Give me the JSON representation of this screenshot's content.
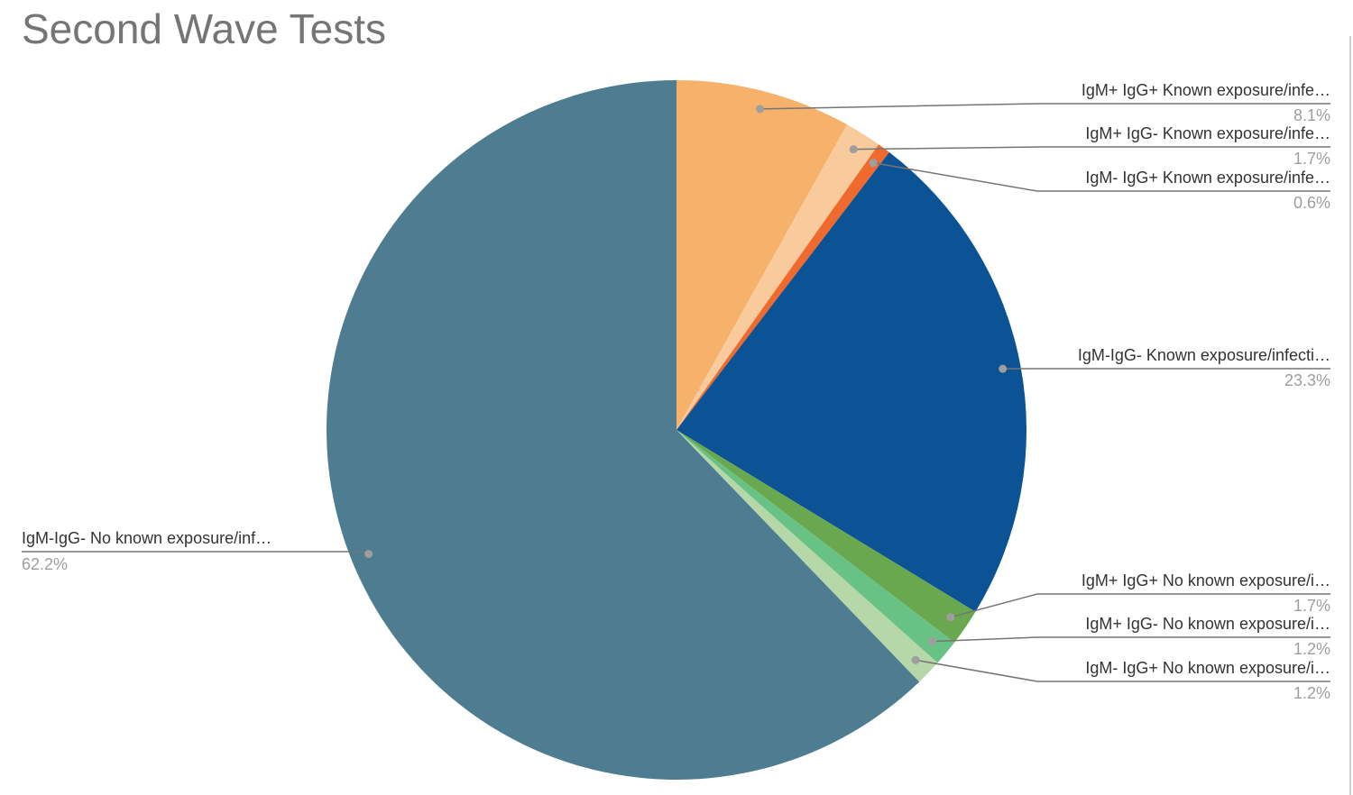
{
  "chart_data": {
    "type": "pie",
    "title": "Second Wave Tests",
    "categories": [
      "IgM+ IgG+ Known exposure/infe…",
      "IgM+ IgG- Known exposure/infe…",
      "IgM- IgG+ Known exposure/infe…",
      "IgM-IgG- Known exposure/infecti…",
      "IgM+ IgG+ No known exposure/i…",
      "IgM+ IgG- No known exposure/i…",
      "IgM- IgG+ No known exposure/i…",
      "IgM-IgG- No known exposure/inf…"
    ],
    "values": [
      8.1,
      1.7,
      0.6,
      23.3,
      1.7,
      1.2,
      1.2,
      62.2
    ],
    "value_labels": [
      "8.1%",
      "1.7%",
      "0.6%",
      "23.3%",
      "1.7%",
      "1.2%",
      "1.2%",
      "62.2%"
    ],
    "colors": [
      "#f6b26b",
      "#f9cb9c",
      "#ef6a2c",
      "#0b5394",
      "#6aa84f",
      "#68c285",
      "#b6d7a8",
      "#4e7d91"
    ]
  }
}
